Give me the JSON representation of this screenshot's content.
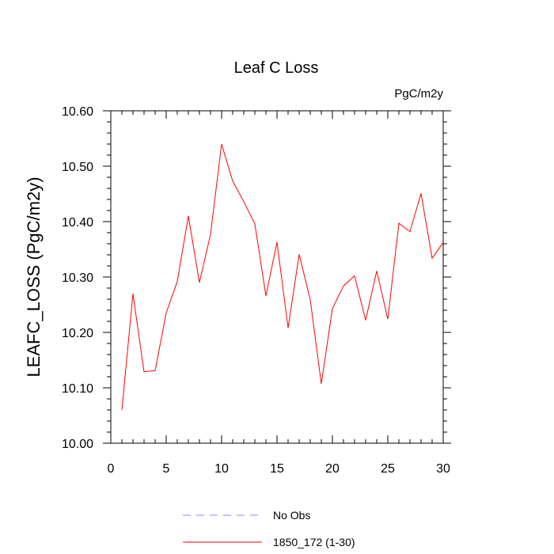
{
  "chart_data": {
    "type": "line",
    "title": "Leaf C Loss",
    "units_label": "PgC/m2y",
    "xlabel": "",
    "ylabel": "LEAFC_LOSS  (PgC/m2y)",
    "xlim": [
      0,
      30
    ],
    "ylim": [
      10.0,
      10.6
    ],
    "x_ticks": [
      0,
      5,
      10,
      15,
      20,
      25,
      30
    ],
    "x_tick_labels": [
      "0",
      "5",
      "10",
      "15",
      "20",
      "25",
      "30"
    ],
    "y_ticks": [
      10.0,
      10.1,
      10.2,
      10.3,
      10.4,
      10.5,
      10.6
    ],
    "y_tick_labels": [
      "10.00",
      "10.10",
      "10.20",
      "10.30",
      "10.40",
      "10.50",
      "10.60"
    ],
    "grid": false,
    "legend_position": "bottom",
    "series": [
      {
        "name": "1850_172 (1-30)",
        "color": "#ff0000",
        "style": "solid",
        "x": [
          1,
          2,
          3,
          4,
          5,
          6,
          7,
          8,
          9,
          10,
          11,
          12,
          13,
          14,
          15,
          16,
          17,
          18,
          19,
          20,
          21,
          22,
          23,
          24,
          25,
          26,
          27,
          28,
          29,
          30
        ],
        "values": [
          10.06,
          10.27,
          10.129,
          10.131,
          10.235,
          10.292,
          10.41,
          10.29,
          10.377,
          10.54,
          10.473,
          10.436,
          10.396,
          10.266,
          10.363,
          10.208,
          10.341,
          10.259,
          10.107,
          10.243,
          10.284,
          10.302,
          10.222,
          10.311,
          10.224,
          10.397,
          10.382,
          10.451,
          10.334,
          10.362
        ]
      }
    ],
    "legend": [
      {
        "label": "No Obs",
        "color": "#8a8aff",
        "style": "dashed"
      },
      {
        "label": "1850_172 (1-30)",
        "color": "#ff0000",
        "style": "solid"
      }
    ]
  }
}
